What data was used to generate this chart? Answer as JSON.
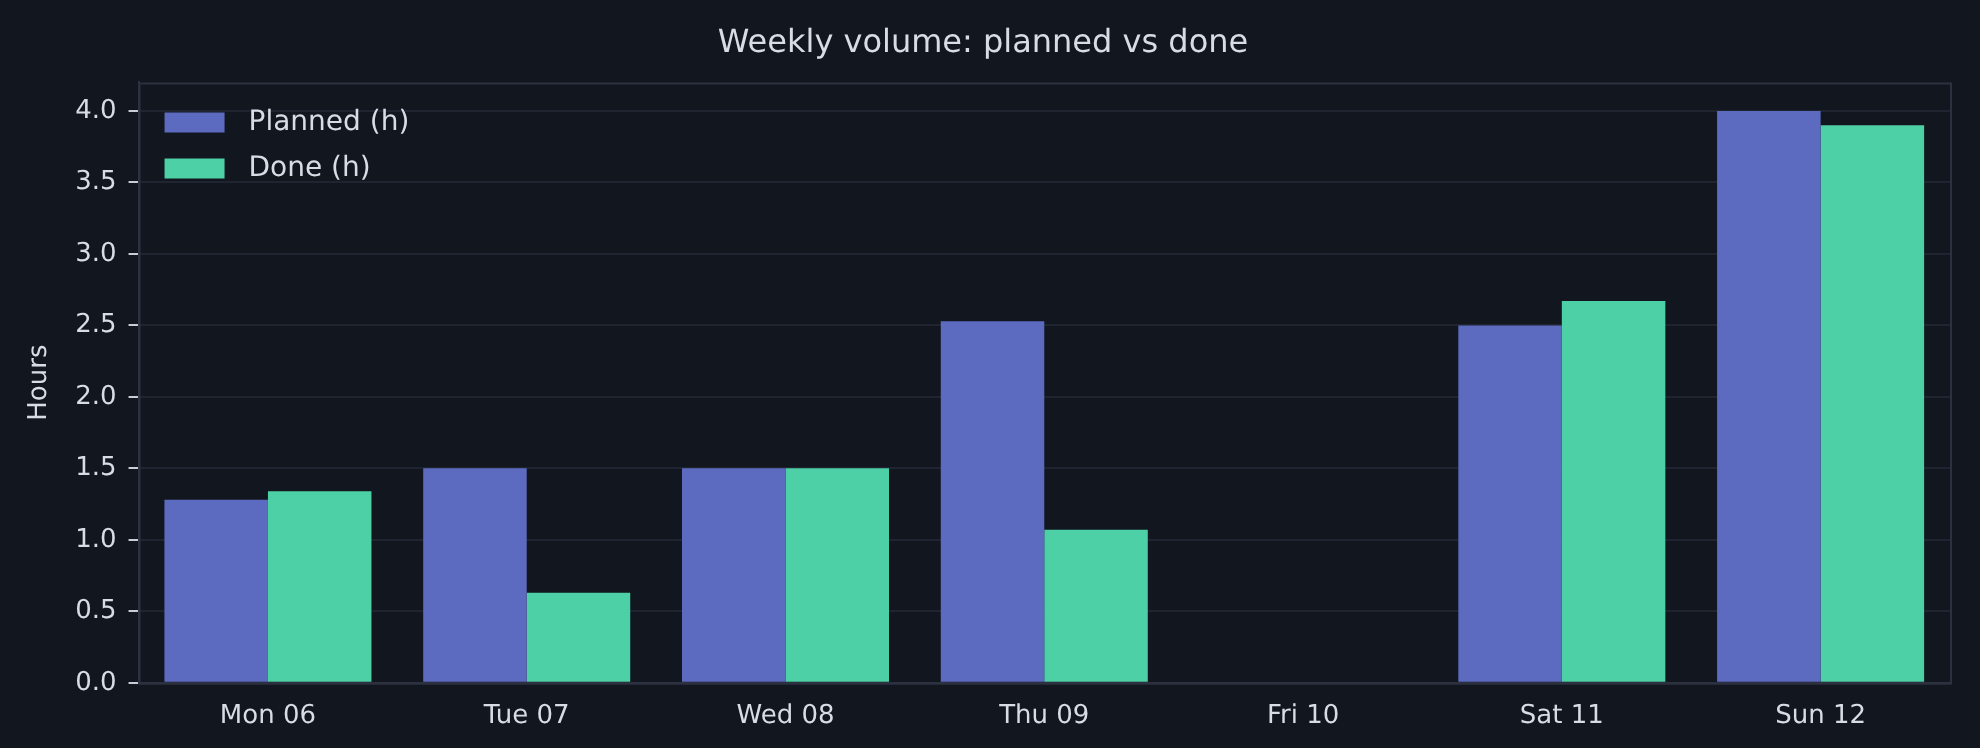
{
  "chart_data": {
    "type": "bar",
    "title": "Weekly volume: planned vs done",
    "ylabel": "Hours",
    "categories": [
      "Mon 06",
      "Tue 07",
      "Wed 08",
      "Thu 09",
      "Fri 10",
      "Sat 11",
      "Sun 12"
    ],
    "series": [
      {
        "name": "Planned (h)",
        "color": "#5c6bc0",
        "values": [
          1.28,
          1.5,
          1.5,
          2.53,
          0,
          2.5,
          4.0
        ]
      },
      {
        "name": "Done (h)",
        "color": "#4dd0a5",
        "values": [
          1.34,
          0.63,
          1.5,
          1.07,
          0,
          2.67,
          3.9
        ]
      }
    ],
    "ylim": [
      0,
      4.2
    ],
    "yticks": [
      {
        "value": 0,
        "label": "0.0"
      },
      0.5,
      {
        "value": 1,
        "label": "1.0"
      },
      1.5,
      {
        "value": 2,
        "label": "2.0"
      },
      2.5,
      {
        "value": 3,
        "label": "3.0"
      },
      3.5,
      {
        "value": 4,
        "label": "4.0"
      }
    ],
    "grid": "y",
    "legend": "top left"
  }
}
